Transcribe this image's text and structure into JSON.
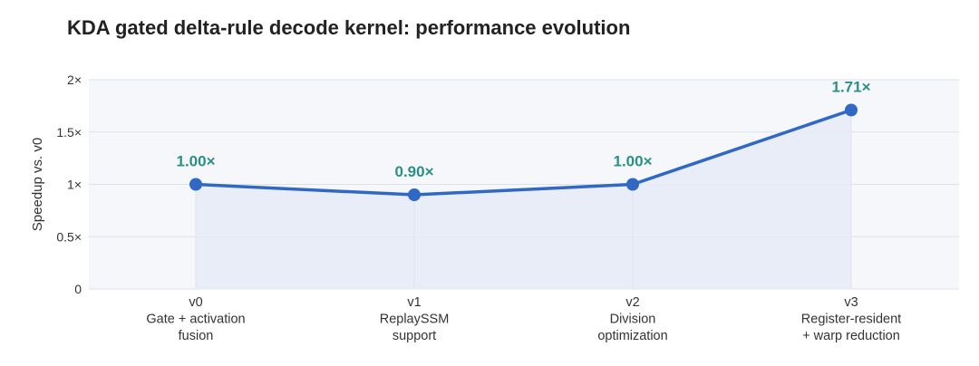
{
  "chart_data": {
    "type": "line",
    "title": "KDA gated delta-rule decode kernel: performance evolution",
    "ylabel": "Speedup vs. v0",
    "xlabel": "",
    "ylim": [
      0,
      2
    ],
    "yticks": [
      0,
      0.5,
      1,
      1.5,
      2
    ],
    "ytick_labels": [
      "0",
      "0.5×",
      "1×",
      "1.5×",
      "2×"
    ],
    "categories": [
      [
        "v0",
        "Gate + activation",
        "fusion"
      ],
      [
        "v1",
        "ReplaySSM",
        "support"
      ],
      [
        "v2",
        "Division",
        "optimization"
      ],
      [
        "v3",
        "Register-resident",
        "+ warp reduction"
      ]
    ],
    "values": [
      1.0,
      0.9,
      1.0,
      1.71
    ],
    "data_labels": [
      "1.00×",
      "0.90×",
      "1.00×",
      "1.71×"
    ],
    "grid": true,
    "area_fill": true,
    "colors": {
      "line": "#3068c4",
      "fill": "#e6ebf6",
      "plot_bg": "#f5f7fb",
      "grid": "#dde2ea",
      "label": "#2a9085"
    }
  }
}
